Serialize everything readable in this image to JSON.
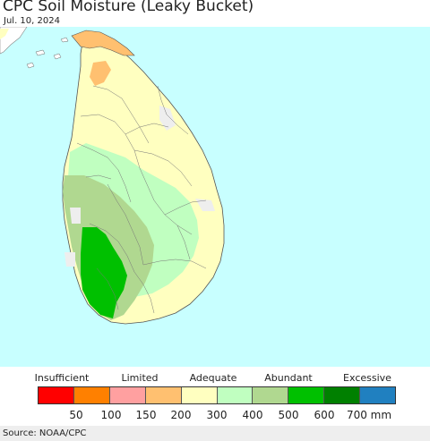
{
  "title": "CPC Soil Moisture (Leaky Bucket)",
  "date": "Jul. 10, 2024",
  "legend": {
    "categories": [
      {
        "label": "Insufficient"
      },
      {
        "label": "Limited"
      },
      {
        "label": "Adequate"
      },
      {
        "label": "Abundant"
      },
      {
        "label": "Excessive"
      }
    ],
    "colors": [
      "#ff0000",
      "#ff8000",
      "#ffa0a0",
      "#ffc070",
      "#ffffc0",
      "#c0ffc0",
      "#b0d890",
      "#00c000",
      "#008000",
      "#2080c0"
    ],
    "ticks": [
      "50",
      "100",
      "150",
      "200",
      "300",
      "400",
      "500",
      "600",
      "700 mm"
    ]
  },
  "source": "Source: NOAA/CPC",
  "map_colors": {
    "ocean": "#c8ffff",
    "land_outside": "#ffffff",
    "boundary": "#666666"
  }
}
